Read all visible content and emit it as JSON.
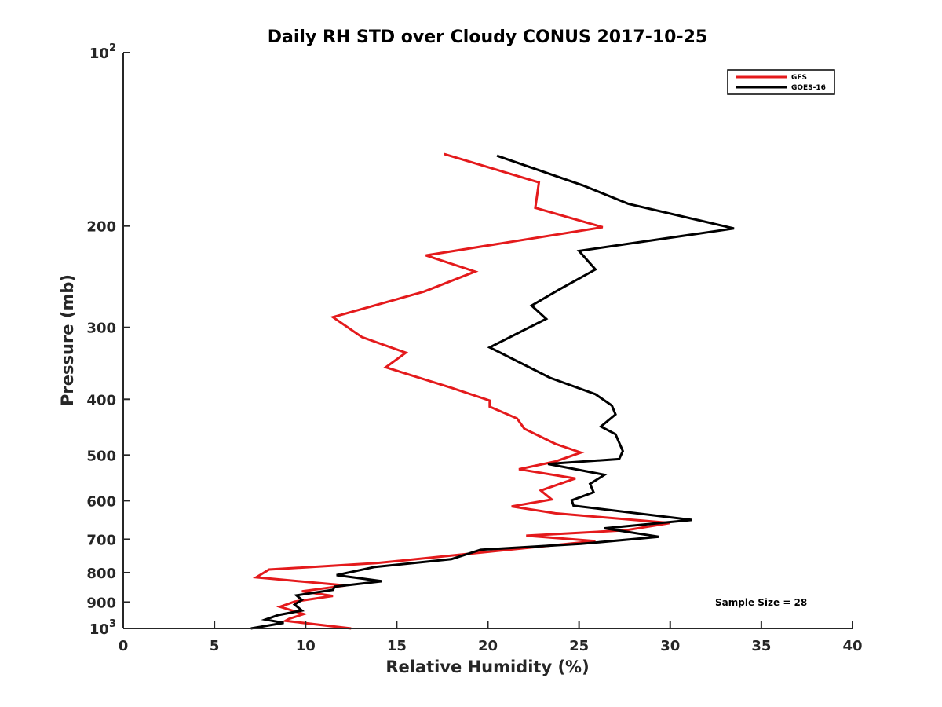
{
  "chart_data": {
    "type": "line",
    "title": "Daily RH STD over Cloudy CONUS 2017-10-25",
    "xlabel": "Relative Humidity (%)",
    "ylabel": "Pressure (mb)",
    "xlim": [
      0,
      40
    ],
    "ylim": [
      100,
      1000
    ],
    "yscale": "log",
    "y_reversed": true,
    "grid": false,
    "legend_position": "top-right",
    "x_ticks": [
      0,
      5,
      10,
      15,
      20,
      25,
      30,
      35,
      40
    ],
    "x_tick_labels": [
      "0",
      "5",
      "10",
      "15",
      "20",
      "25",
      "30",
      "35",
      "40"
    ],
    "y_ticks": [
      {
        "value": 100,
        "base": "10",
        "exp": "2"
      },
      {
        "value": 200,
        "label": "200"
      },
      {
        "value": 300,
        "label": "300"
      },
      {
        "value": 400,
        "label": "400"
      },
      {
        "value": 500,
        "label": "500"
      },
      {
        "value": 600,
        "label": "600"
      },
      {
        "value": 700,
        "label": "700"
      },
      {
        "value": 800,
        "label": "800"
      },
      {
        "value": 900,
        "label": "900"
      },
      {
        "value": 1000,
        "base": "10",
        "exp": "3"
      }
    ],
    "annotation": "Sample Size = 28",
    "series": [
      {
        "name": "GFS",
        "color": "#e41a1c",
        "x": [
          17.6,
          22.8,
          22.6,
          26.3,
          16.6,
          19.3,
          16.5,
          11.5,
          13.1,
          15.5,
          14.4,
          18.0,
          20.1,
          20.1,
          21.6,
          22.0,
          23.7,
          25.1,
          23.7,
          21.7,
          24.8,
          22.9,
          23.5,
          21.3,
          23.7,
          30.0,
          27.6,
          22.1,
          25.9,
          20.2,
          13.9,
          8.0,
          7.3,
          12.2,
          9.8,
          11.5,
          9.4,
          8.6,
          9.9,
          9.1,
          8.9,
          12.5
        ],
        "y": [
          150,
          168,
          186,
          201,
          225,
          240,
          260,
          288,
          312,
          332,
          352,
          382,
          402,
          412,
          432,
          450,
          478,
          495,
          513,
          529,
          549,
          576,
          597,
          614,
          631,
          656,
          675,
          690,
          705,
          735,
          770,
          790,
          815,
          842,
          862,
          878,
          898,
          917,
          944,
          962,
          970,
          1000
        ]
      },
      {
        "name": "GOES-16",
        "color": "#000000",
        "x": [
          20.5,
          25.2,
          27.7,
          33.5,
          25.0,
          25.9,
          23.9,
          22.4,
          23.2,
          20.1,
          23.4,
          25.9,
          26.8,
          27.0,
          26.2,
          27.0,
          27.4,
          27.2,
          23.3,
          26.4,
          25.6,
          25.8,
          24.6,
          24.7,
          31.2,
          26.4,
          29.4,
          25.1,
          19.6,
          18.0,
          13.8,
          11.7,
          14.2,
          11.6,
          11.5,
          9.5,
          9.8,
          9.4,
          9.8,
          8.5,
          7.8,
          8.8,
          7.0
        ],
        "y": [
          151,
          170,
          183,
          202,
          221,
          238,
          258,
          275,
          290,
          325,
          367,
          392,
          410,
          425,
          446,
          460,
          492,
          508,
          518,
          541,
          561,
          580,
          599,
          612,
          648,
          670,
          693,
          713,
          730,
          758,
          782,
          808,
          828,
          846,
          857,
          876,
          892,
          909,
          931,
          948,
          965,
          978,
          1000
        ]
      }
    ]
  }
}
